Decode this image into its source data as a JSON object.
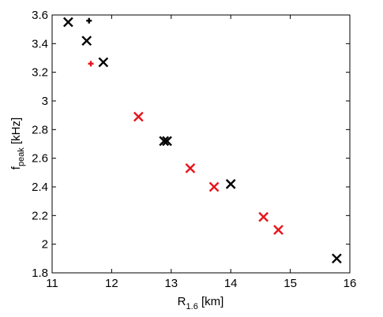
{
  "chart_data": {
    "type": "scatter",
    "title": "",
    "xlabel": {
      "base": "R",
      "sub": "1.6",
      "unit": " [km]"
    },
    "ylabel": {
      "base": "f",
      "sub": "peak",
      "unit": " [kHz]"
    },
    "xlim": [
      11,
      16
    ],
    "ylim": [
      1.8,
      3.6
    ],
    "xticks": [
      "11",
      "12",
      "13",
      "14",
      "15",
      "16"
    ],
    "yticks": [
      "1.8",
      "2",
      "2.2",
      "2.4",
      "2.6",
      "2.8",
      "3",
      "3.2",
      "3.4",
      "3.6"
    ],
    "grid": false,
    "legend": "none",
    "series": [
      {
        "marker": "x",
        "color": "#000000",
        "points": [
          [
            11.27,
            3.55
          ],
          [
            11.58,
            3.42
          ],
          [
            11.86,
            3.27
          ],
          [
            12.88,
            2.72
          ],
          [
            12.93,
            2.72
          ],
          [
            14.0,
            2.42
          ],
          [
            15.78,
            1.9
          ]
        ]
      },
      {
        "marker": "x",
        "color": "#e8141c",
        "points": [
          [
            12.45,
            2.89
          ],
          [
            13.32,
            2.53
          ],
          [
            13.72,
            2.4
          ],
          [
            14.55,
            2.19
          ],
          [
            14.8,
            2.1
          ]
        ]
      },
      {
        "marker": "+",
        "color": "#000000",
        "points": [
          [
            11.62,
            3.56
          ]
        ]
      },
      {
        "marker": "+",
        "color": "#e8141c",
        "points": [
          [
            11.65,
            3.26
          ]
        ]
      }
    ]
  }
}
